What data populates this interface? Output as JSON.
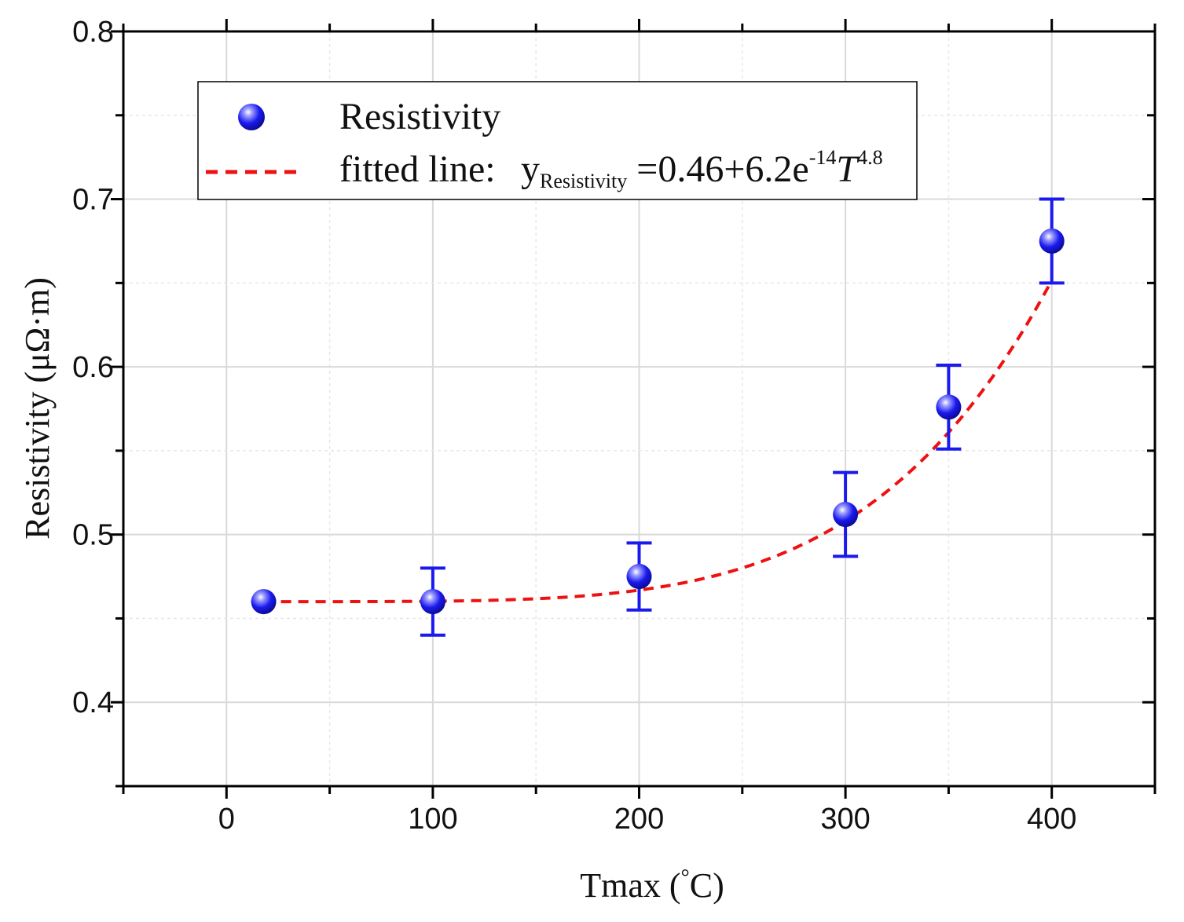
{
  "chart_data": {
    "type": "scatter",
    "title": "",
    "xlabel": "Tmax (°C)",
    "xlabel_main": "Tmax (",
    "xlabel_degree": "°",
    "xlabel_unit": "C)",
    "ylabel": "Resistivity (μΩ·m)",
    "xlim": [
      -50,
      450
    ],
    "ylim": [
      0.35,
      0.8
    ],
    "x_ticks": [
      0,
      100,
      200,
      300,
      400
    ],
    "y_ticks": [
      0.4,
      0.5,
      0.6,
      0.7,
      0.8
    ],
    "x_tick_labels": [
      "0",
      "100",
      "200",
      "300",
      "400"
    ],
    "y_tick_labels": [
      "0.4",
      "0.5",
      "0.6",
      "0.7",
      "0.8"
    ],
    "grid": true,
    "series": [
      {
        "name": "Resistivity",
        "marker": "sphere",
        "color": "#1a1aee",
        "x": [
          18,
          100,
          200,
          300,
          350,
          400
        ],
        "y": [
          0.46,
          0.46,
          0.475,
          0.512,
          0.576,
          0.675
        ],
        "error": [
          0,
          0.02,
          0.02,
          0.025,
          0.025,
          0.025
        ]
      },
      {
        "name": "fitted line",
        "style": "dashed",
        "color": "#ee1111",
        "model": "y = 0.46 + 6.2e-14 * T^4.8",
        "a": 0.46,
        "b": 6.2e-14,
        "p": 4.8,
        "x_range": [
          18,
          400
        ]
      }
    ],
    "legend": {
      "position": "top-left",
      "entries": [
        "Resistivity",
        "fitted line:"
      ],
      "formula_y": "y",
      "formula_sub": "Resistivity",
      "formula_mid": " =0.46+6.2e",
      "formula_sup1": "-14",
      "formula_T": "T",
      "formula_sup2": "4.8"
    }
  }
}
